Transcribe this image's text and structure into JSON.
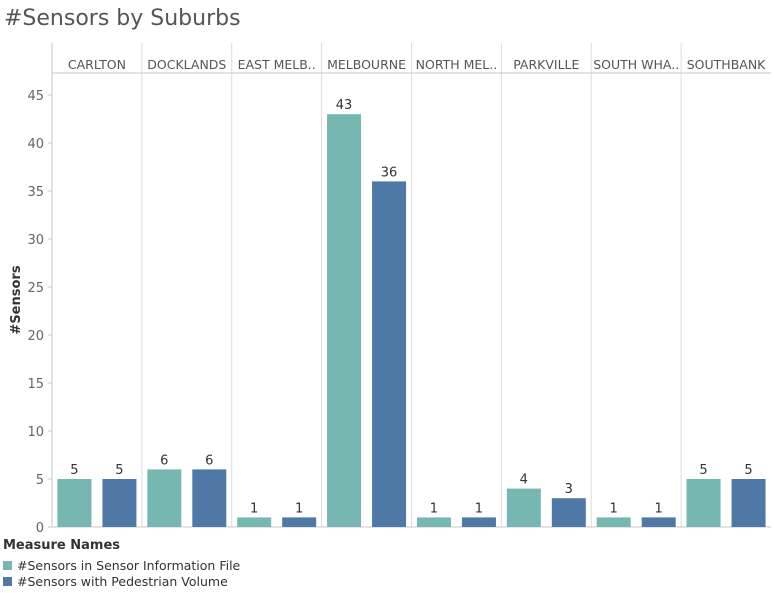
{
  "chart_data": {
    "type": "bar",
    "title": "#Sensors by Suburbs",
    "ylabel": "#Sensors",
    "xlabel": "",
    "ylim": [
      0,
      48
    ],
    "yticks": [
      0,
      5,
      10,
      15,
      20,
      25,
      30,
      35,
      40,
      45
    ],
    "grid": false,
    "legend_position": "bottom-left",
    "categories": [
      "CARLTON",
      "DOCKLANDS",
      "EAST MELB..",
      "MELBOURNE",
      "NORTH MEL..",
      "PARKVILLE",
      "SOUTH WHA..",
      "SOUTHBANK"
    ],
    "series": [
      {
        "name": "#Sensors in Sensor Information File",
        "color": "#76b7b2",
        "values": [
          5,
          6,
          1,
          43,
          1,
          4,
          1,
          5
        ]
      },
      {
        "name": "#Sensors with Pedestrian Volume",
        "color": "#4e79a7",
        "values": [
          5,
          6,
          1,
          36,
          1,
          3,
          1,
          5
        ]
      }
    ]
  },
  "legend": {
    "title": "Measure Names"
  }
}
